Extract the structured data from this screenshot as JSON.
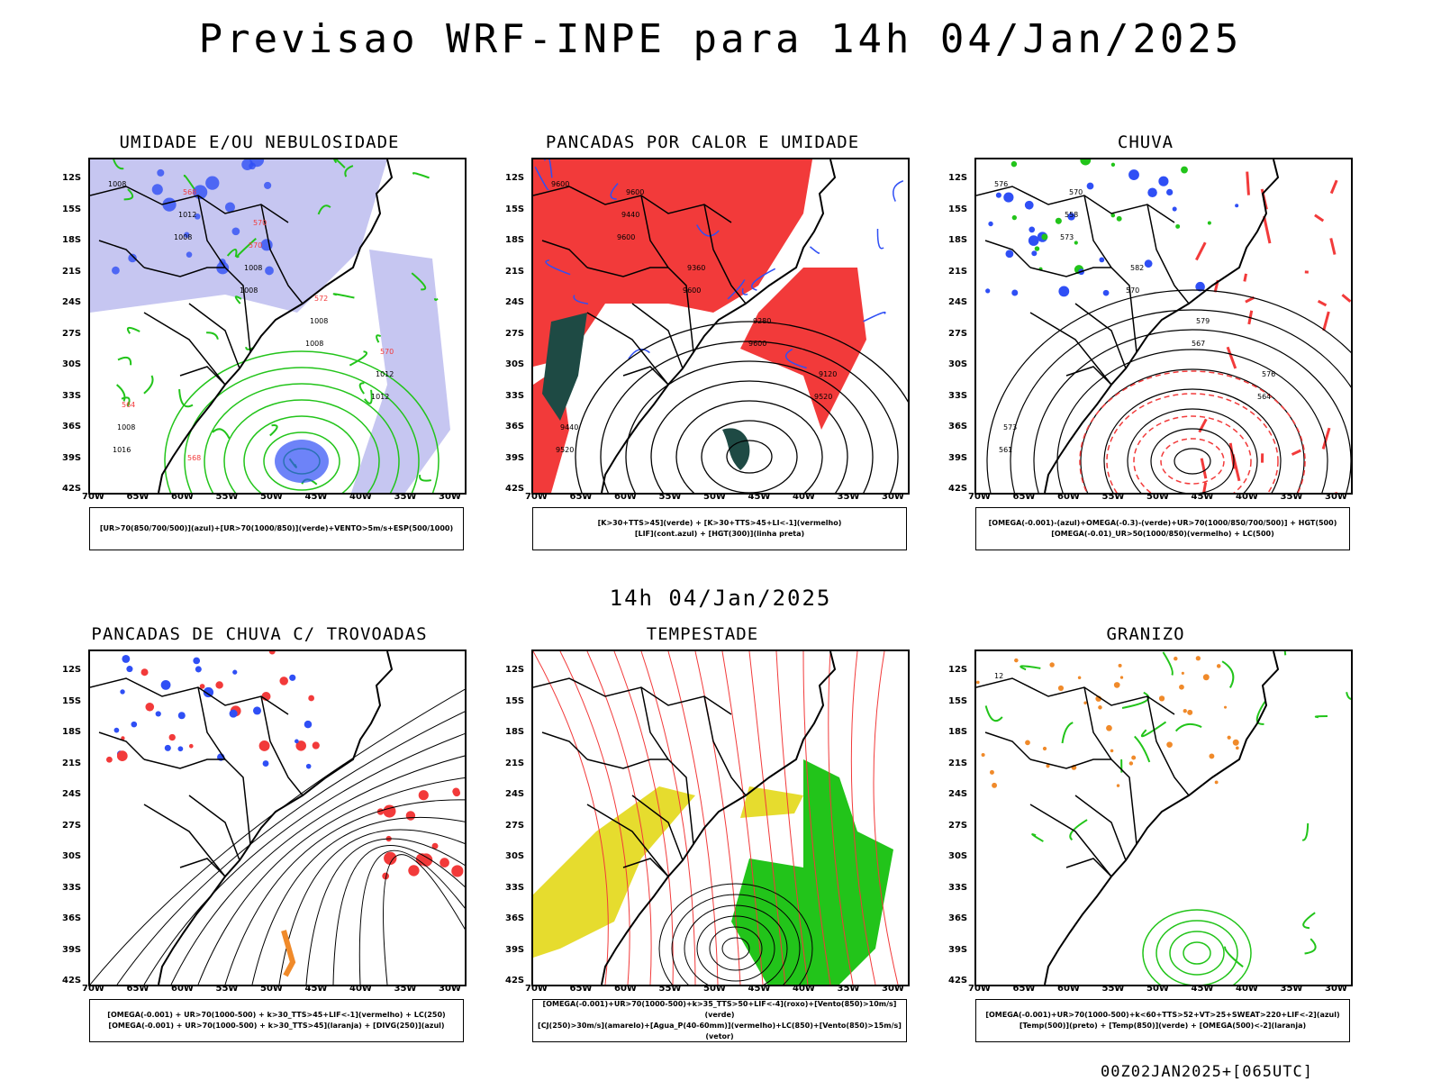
{
  "header": {
    "title": "Previsao WRF-INPE  para 14h 04/Jan/2025",
    "mid_date": "14h 04/Jan/2025",
    "footer": "00Z02JAN2025+[065UTC]"
  },
  "axes": {
    "lat_labels": [
      "12S",
      "15S",
      "18S",
      "21S",
      "24S",
      "27S",
      "30S",
      "33S",
      "36S",
      "39S",
      "42S"
    ],
    "lon_labels": [
      "70W",
      "65W",
      "60W",
      "55W",
      "50W",
      "45W",
      "40W",
      "35W",
      "30W"
    ]
  },
  "colors": {
    "blue": "#2f4ff5",
    "green": "#22c41a",
    "red": "#f23a3a",
    "orange": "#f08a2a",
    "yellow": "#e6dc2e",
    "lavender": "#b8b8ee",
    "darkteal": "#1e4a44",
    "black": "#000000"
  },
  "panels": [
    {
      "title": "UMIDADE E/OU NEBULOSIDADE",
      "legend": [
        "[UR>70(850/700/500)](azul)+[UR>70(1000/850)](verde)+VENTO>5m/s+ESP(500/1000)"
      ],
      "contour_labels": [
        "1008",
        "1008",
        "1008",
        "1008",
        "1012",
        "1016",
        "1012",
        "1008",
        "1008",
        "1012",
        "1008",
        "568",
        "570",
        "572",
        "570",
        "564",
        "568",
        "570"
      ]
    },
    {
      "title": "PANCADAS POR CALOR E UMIDADE",
      "legend": [
        "[K>30+TTS>45](verde) + [K>30+TTS>45+LI<-1](vermelho)",
        "[LIF](cont.azul) + [HGT(300)](linha preta)"
      ],
      "contour_labels": [
        "9600",
        "9600",
        "9600",
        "9600",
        "9520",
        "9520",
        "9440",
        "9360",
        "9280",
        "9120",
        "9440",
        "9600"
      ]
    },
    {
      "title": "CHUVA",
      "legend": [
        "[OMEGA(-0.001)-(azul)+OMEGA(-0.3)-(verde)+UR>70(1000/850/700/500)] + HGT(500)",
        "[OMEGA(-0.01)_UR>50(1000/850)(vermelho) + LC(500)"
      ],
      "contour_labels": [
        "576",
        "573",
        "570",
        "567",
        "564",
        "561",
        "558",
        "582",
        "579",
        "576",
        "573",
        "570"
      ]
    },
    {
      "title": "PANCADAS DE CHUVA C/ TROVOADAS",
      "legend": [
        "[OMEGA(-0.001) + UR>70(1000-500) + k>30_TTS>45+LIF<-1](vermelho) + LC(250)",
        "[OMEGA(-0.001) + UR>70(1000-500) + k>30_TTS>45](laranja) + [DIVG(250)](azul)"
      ],
      "contour_labels": []
    },
    {
      "title": "TEMPESTADE",
      "legend": [
        "[OMEGA(-0.001)+UR>70(1000-500)+k>35_TTS>50+LIF<-4](roxo)+[Vento(850)>10m/s](verde)",
        "[CJ(250)>30m/s](amarelo)+[Agua_P(40-60mm)](vermelho)+LC(850)+[Vento(850)>15m/s](vetor)"
      ],
      "contour_labels": []
    },
    {
      "title": "GRANIZO",
      "legend": [
        "[OMEGA(-0.001)+UR>70(1000-500)+k<60+TTS>52+VT>25+SWEAT>220+LIF<-2](azul)",
        "[Temp(500)](preto) + [Temp(850)](verde) + [OMEGA(500)<-2](laranja)"
      ],
      "contour_labels": [
        "12"
      ]
    }
  ]
}
